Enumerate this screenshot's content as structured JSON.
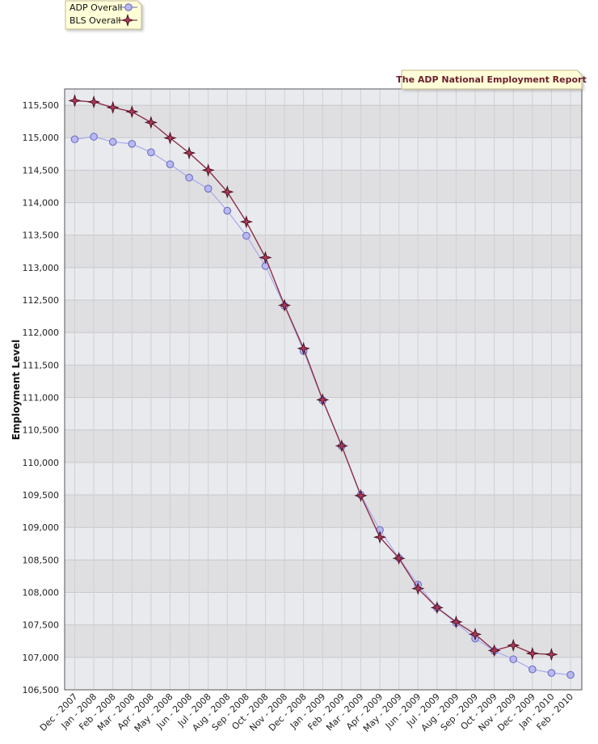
{
  "chart_data": {
    "type": "line",
    "title": "The ADP National Employment Report",
    "ylabel": "Employment Level",
    "xlabel": "",
    "ylim": [
      106500,
      115750
    ],
    "y_ticks": [
      "106,500",
      "107,000",
      "107,500",
      "108,000",
      "108,500",
      "109,000",
      "109,500",
      "110,000",
      "110,500",
      "111,000",
      "111,500",
      "112,000",
      "112,500",
      "113,000",
      "113,500",
      "114,000",
      "114,500",
      "115,000",
      "115,500"
    ],
    "categories": [
      "Dec - 2007",
      "Jan - 2008",
      "Feb - 2008",
      "Mar - 2008",
      "Apr - 2008",
      "May - 2008",
      "Jun - 2008",
      "Jul - 2008",
      "Aug - 2008",
      "Sep - 2008",
      "Oct - 2008",
      "Nov - 2008",
      "Dec - 2008",
      "Jan - 2009",
      "Feb - 2009",
      "Mar - 2009",
      "Apr - 2009",
      "May - 2009",
      "Jun - 2009",
      "Jul - 2009",
      "Aug - 2009",
      "Sep - 2009",
      "Oct - 2009",
      "Nov - 2009",
      "Dec - 2009",
      "Jan - 2010",
      "Feb - 2010"
    ],
    "grid": true,
    "legend_position": "top-left",
    "series": [
      {
        "name": "ADP Overall",
        "marker": "circle",
        "color": "#9999ee",
        "values": [
          114975,
          115015,
          114935,
          114905,
          114775,
          114590,
          114385,
          114215,
          113875,
          113490,
          113025,
          112410,
          111715,
          110955,
          110250,
          109500,
          108960,
          108530,
          108120,
          107760,
          107530,
          107290,
          107100,
          106970,
          106815,
          106760,
          106730
        ]
      },
      {
        "name": "BLS Overall",
        "marker": "star",
        "color": "#8b2f45",
        "values": [
          115570,
          115550,
          115465,
          115400,
          115235,
          114995,
          114765,
          114500,
          114165,
          113705,
          113155,
          112420,
          111755,
          110965,
          110255,
          109490,
          108850,
          108525,
          108060,
          107765,
          107545,
          107355,
          107105,
          107185,
          107060,
          107045,
          null
        ]
      }
    ]
  }
}
